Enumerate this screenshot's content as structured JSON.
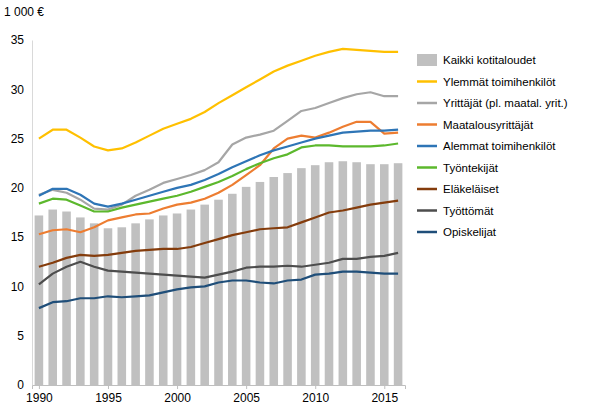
{
  "chart_data": {
    "type": "line",
    "y_label": "1 000 €",
    "x": [
      1990,
      1991,
      1992,
      1993,
      1994,
      1995,
      1996,
      1997,
      1998,
      1999,
      2000,
      2001,
      2002,
      2003,
      2004,
      2005,
      2006,
      2007,
      2008,
      2009,
      2010,
      2011,
      2012,
      2013,
      2014,
      2015,
      2016
    ],
    "xlim": [
      1989.5,
      2016.5
    ],
    "xticks": [
      1990,
      1995,
      2000,
      2005,
      2010,
      2015
    ],
    "ylim": [
      0,
      35
    ],
    "yticks": [
      0,
      5,
      10,
      15,
      20,
      25,
      30,
      35
    ],
    "grid": false,
    "legend": "right",
    "series": [
      {
        "name": "Kaikki kotitaloudet",
        "type": "bar",
        "color": "#c0c0c0",
        "values": [
          17.2,
          17.8,
          17.6,
          17.0,
          16.4,
          15.9,
          16.0,
          16.4,
          16.8,
          17.2,
          17.4,
          17.8,
          18.3,
          18.8,
          19.4,
          20.1,
          20.6,
          21.1,
          21.5,
          22.0,
          22.3,
          22.6,
          22.7,
          22.6,
          22.4,
          22.4,
          22.5
        ]
      },
      {
        "name": "Ylemmät toimihenkilöt",
        "type": "line",
        "color": "#ffc000",
        "values": [
          25.0,
          25.9,
          25.9,
          25.1,
          24.2,
          23.8,
          24.0,
          24.6,
          25.3,
          26.0,
          26.5,
          27.0,
          27.7,
          28.6,
          29.4,
          30.2,
          31.0,
          31.8,
          32.4,
          32.9,
          33.4,
          33.8,
          34.1,
          34.0,
          33.9,
          33.8,
          33.8
        ]
      },
      {
        "name": "Yrittäjät (pl. maatal. yrit.)",
        "type": "line",
        "color": "#a6a6a6",
        "values": [
          19.3,
          19.8,
          19.5,
          18.8,
          17.9,
          17.8,
          18.3,
          19.2,
          19.8,
          20.5,
          20.9,
          21.3,
          21.8,
          22.6,
          24.4,
          25.1,
          25.4,
          25.8,
          26.8,
          27.8,
          28.1,
          28.6,
          29.1,
          29.5,
          29.7,
          29.3,
          29.3
        ]
      },
      {
        "name": "Maatalousyrittäjät",
        "type": "line",
        "color": "#ed7d31",
        "values": [
          15.3,
          15.7,
          15.8,
          15.5,
          16.0,
          16.7,
          17.0,
          17.3,
          17.4,
          17.9,
          18.3,
          18.5,
          18.9,
          19.5,
          20.3,
          21.3,
          22.3,
          24.0,
          25.0,
          25.3,
          25.1,
          25.6,
          26.2,
          26.7,
          26.7,
          25.5,
          25.6
        ]
      },
      {
        "name": "Alemmat toimihenkilöt",
        "type": "line",
        "color": "#2e75b6",
        "values": [
          19.2,
          19.9,
          19.9,
          19.3,
          18.4,
          18.1,
          18.4,
          18.8,
          19.2,
          19.6,
          20.0,
          20.3,
          20.8,
          21.4,
          22.1,
          22.7,
          23.3,
          23.8,
          24.2,
          24.6,
          25.0,
          25.3,
          25.6,
          25.7,
          25.8,
          25.8,
          25.9
        ]
      },
      {
        "name": "Työntekijät",
        "type": "line",
        "color": "#5cb82d",
        "values": [
          18.4,
          18.9,
          18.8,
          18.2,
          17.6,
          17.6,
          18.0,
          18.3,
          18.6,
          18.9,
          19.2,
          19.6,
          20.1,
          20.6,
          21.2,
          21.9,
          22.5,
          23.0,
          23.4,
          24.1,
          24.3,
          24.3,
          24.2,
          24.2,
          24.2,
          24.3,
          24.5
        ]
      },
      {
        "name": "Eläkeläiset",
        "type": "line",
        "color": "#843c0c",
        "values": [
          12.0,
          12.4,
          12.9,
          13.2,
          13.1,
          13.2,
          13.4,
          13.6,
          13.7,
          13.8,
          13.8,
          14.0,
          14.4,
          14.8,
          15.2,
          15.5,
          15.8,
          15.9,
          16.0,
          16.5,
          17.0,
          17.5,
          17.7,
          18.0,
          18.3,
          18.5,
          18.7
        ]
      },
      {
        "name": "Työttömät",
        "type": "line",
        "color": "#4d4d4d",
        "values": [
          10.2,
          11.3,
          12.0,
          12.5,
          12.0,
          11.6,
          11.5,
          11.4,
          11.3,
          11.2,
          11.1,
          11.0,
          10.9,
          11.2,
          11.5,
          11.9,
          12.0,
          12.0,
          12.1,
          12.0,
          12.2,
          12.4,
          12.8,
          12.8,
          13.0,
          13.1,
          13.4
        ]
      },
      {
        "name": "Opiskelijat",
        "type": "line",
        "color": "#1f4e79",
        "values": [
          7.8,
          8.4,
          8.5,
          8.8,
          8.8,
          9.0,
          8.9,
          9.0,
          9.1,
          9.4,
          9.7,
          9.9,
          10.0,
          10.4,
          10.6,
          10.6,
          10.4,
          10.3,
          10.6,
          10.7,
          11.2,
          11.3,
          11.5,
          11.5,
          11.4,
          11.3,
          11.3
        ]
      }
    ]
  }
}
